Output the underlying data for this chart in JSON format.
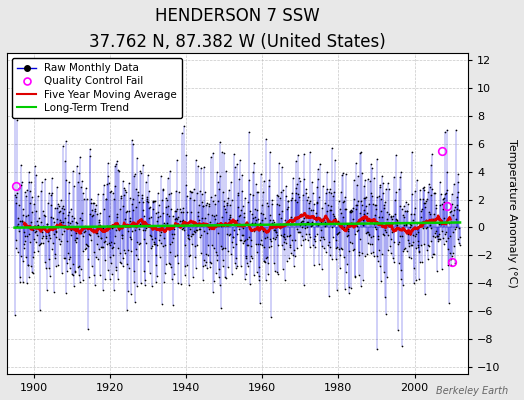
{
  "title": "HENDERSON 7 SSW",
  "subtitle": "37.762 N, 87.382 W (United States)",
  "ylabel": "Temperature Anomaly (°C)",
  "watermark": "Berkeley Earth",
  "ylim": [
    -10.5,
    12.5
  ],
  "xlim": [
    1893,
    2014
  ],
  "yticks": [
    -10,
    -8,
    -6,
    -4,
    -2,
    0,
    2,
    4,
    6,
    8,
    10,
    12
  ],
  "xticks": [
    1900,
    1920,
    1940,
    1960,
    1980,
    2000
  ],
  "background_color": "#e8e8e8",
  "plot_bg_color": "#ffffff",
  "grid_color": "#b0b0b0",
  "seed": 137,
  "start_year": 1895,
  "end_year": 2011,
  "raw_color": "#0000dd",
  "moving_avg_color": "#dd0000",
  "trend_color": "#00cc00",
  "qc_fail_color": "#ff00ff",
  "title_fontsize": 12,
  "subtitle_fontsize": 9,
  "legend_fontsize": 7.5,
  "tick_labelsize": 8,
  "ylabel_fontsize": 8
}
